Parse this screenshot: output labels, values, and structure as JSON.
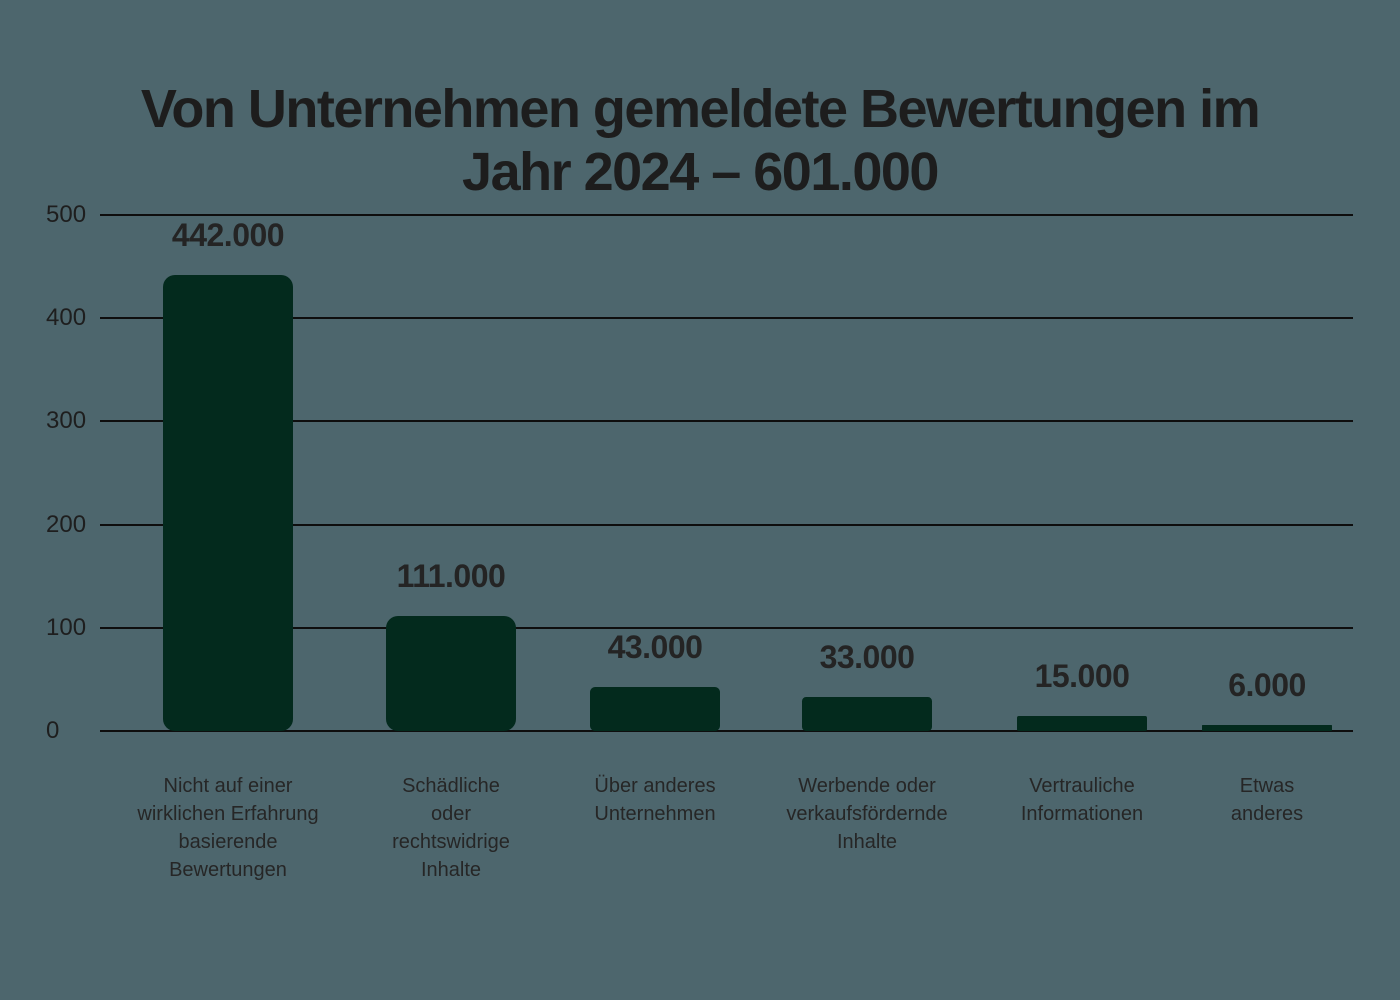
{
  "title": "Von Unternehmen gemeldete Bewertungen im Jahr 2024 – 601.000",
  "title_display": "Von Unternehmen gemeldete Bewertungen im\nJahr 2024 – 601.000",
  "colors": {
    "background": "#4d666d",
    "bar": "#032a1d",
    "grid": "#0e0e0e",
    "title_text": "#1d1d1d",
    "label_text": "#262626"
  },
  "chart_data": {
    "type": "bar",
    "title": "Von Unternehmen gemeldete Bewertungen im Jahr 2024 – 601.000",
    "categories": [
      "Nicht auf einer wirklichen Erfahrung basierende Bewertungen",
      "Schädliche oder rechtswidrige Inhalte",
      "Über anderes Unternehmen",
      "Werbende oder verkaufsfördernde Inhalte",
      "Vertrauliche Informationen",
      "Etwas anderes"
    ],
    "categories_display": [
      "Nicht auf einer\nwirklichen Erfahrung\nbasierende\nBewertungen",
      "Schädliche\noder\nrechtswidrige\nInhalte",
      "Über anderes\nUnternehmen",
      "Werbende oder\nverkaufsfördernde\nInhalte",
      "Vertrauliche\nInformationen",
      "Etwas\nanderes"
    ],
    "values": [
      442,
      111,
      43,
      33,
      15,
      6
    ],
    "value_labels": [
      "442.000",
      "111.000",
      "43.000",
      "33.000",
      "15.000",
      "6.000"
    ],
    "xlabel": "",
    "ylabel": "",
    "ylim": [
      0,
      500
    ],
    "yticks": [
      0,
      100,
      200,
      300,
      400,
      500
    ],
    "grid": true,
    "legend": false
  }
}
